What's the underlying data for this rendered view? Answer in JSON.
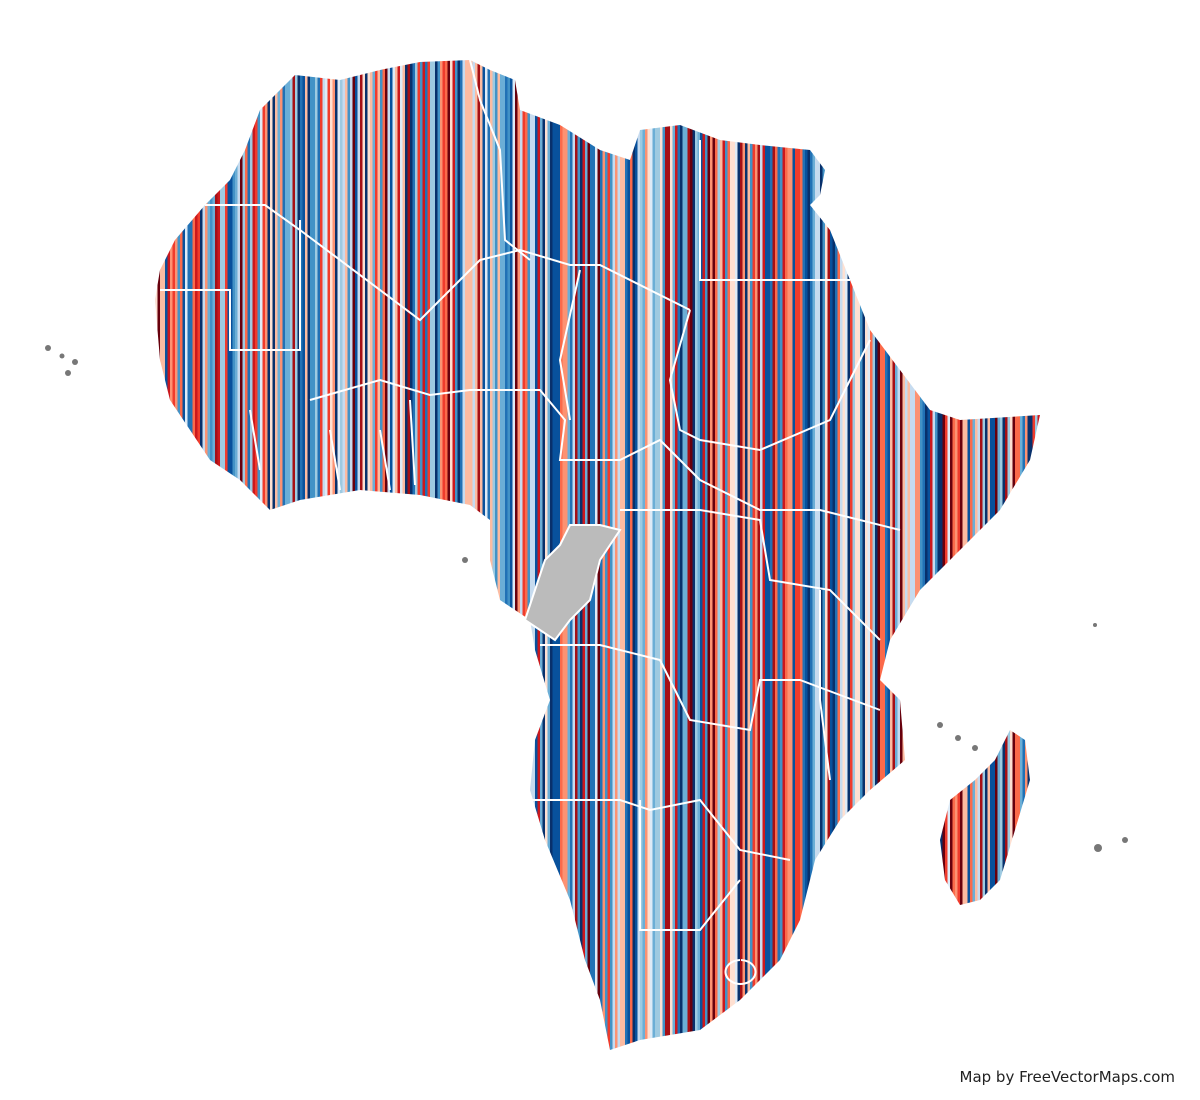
{
  "attribution": "Map by FreeVectorMaps.com"
}
